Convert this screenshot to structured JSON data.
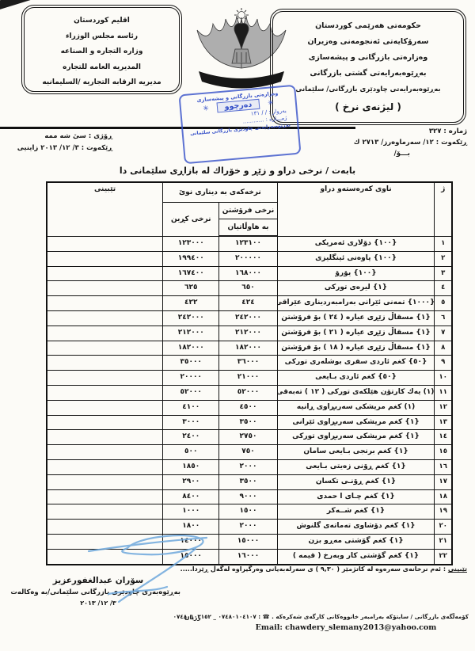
{
  "header": {
    "left_box": {
      "lines": [
        "اقليم كوردستان",
        "رئاسه مجلس الوزراء",
        "وزاره التجاره و الصناعه",
        "المديريه العامه للتجاره",
        "مديريه الرقابه التجاريه /السليمانيه"
      ]
    },
    "right_box": {
      "lines": [
        "حكومه‌تی هه‌رێمی كوردستان",
        "سه‌رۆكایه‌تی ئه‌نجومه‌نی وه‌زیران",
        "وه‌زاره‌تی بازرگانی و پیشه‌سازی",
        "به‌ڕێوه‌به‌رایه‌تی گشتی بازرگانی",
        "به‌ڕێوه‌به‌رایه‌تی چاودێری بازرگانی/ سلێمانی",
        "( لیژنه‌ی نرخ )"
      ]
    },
    "stamp": {
      "color": "#3550c8",
      "line1": "وه‌زاره‌تی بازرگانی و پیشه‌سازی",
      "asterisk": "✳",
      "center": "ده‌رچوو",
      "line2": "به‌روار :      /      / ١٣١",
      "line3": "ژمـــاره‌ : ............",
      "line4": "به‌ڕێوه‌به‌رایه‌تی چاودێری بازرگانی سلێمانی"
    }
  },
  "meta_left": {
    "day": "ڕۆژی : سیٚ شه‌ ممه‌",
    "date": "ڕێكه‌وت : ٣/ ١٢/ ٢٠١٣ زاینیی"
  },
  "meta_right": {
    "number": "ژماره‌ : ٣٢٧",
    "date": "ڕێكه‌وت : ١٢/ سه‌رماوه‌رز/ ٢٧١٣ ك",
    "to": "بـــۆ/"
  },
  "subject": "بابه‌ت / نرخی دراو و زێڕ و خۆراك له‌ بازاڕی سلێمانی دا",
  "table": {
    "col_no": "ژ",
    "col_name": "ناوی كه‌ره‌سته‌و دراو",
    "col_group": "نرخه‌كه‌ی به‌ دیناری نوێ",
    "col_sell_line1": "نرخی فرۆشتن",
    "col_sell_line2": "به‌ هاوڵاتیان",
    "col_buy": "نرخی كڕین",
    "col_notes": "تێبینی",
    "rows": [
      {
        "no": "١",
        "name": "{١٠٠} دۆلاری ئه‌مریكی",
        "sell": "١٢٣١٠٠",
        "buy": "١٢٣٠٠٠",
        "note": ""
      },
      {
        "no": "٢",
        "name": "{١٠٠} پاوه‌نی ئینگلیزی",
        "sell": "٢٠٠٠٠٠",
        "buy": "١٩٩٤٠٠",
        "note": ""
      },
      {
        "no": "٣",
        "name": "{١٠٠} یۆرۆ",
        "sell": "١٦٨٠٠٠",
        "buy": "١٦٧٤٠٠",
        "note": ""
      },
      {
        "no": "٤",
        "name": "{١} لیره‌ی توركی",
        "sell": "٦٥٠",
        "buy": "٦٢٥",
        "note": ""
      },
      {
        "no": "٥",
        "name": "{١٠٠٠} تمه‌نی ئێرانی به‌رامبه‌ردیناری عێراقی",
        "sell": "٤٢٤",
        "buy": "٤٢٢",
        "note": ""
      },
      {
        "no": "٦",
        "name": "{١} مسقاڵ زێڕی عیاره‌ ( ٢٤ ) بۆ فرۆشتن",
        "sell": "٢٤٢٠٠٠",
        "buy": "٢٤٢٠٠٠",
        "note": ""
      },
      {
        "no": "٧",
        "name": "{١} مسقاڵ زێڕی عیاره‌ ( ٢١ ) بۆ فرۆشتن",
        "sell": "٢١٢٠٠٠",
        "buy": "٢١٢٠٠٠",
        "note": ""
      },
      {
        "no": "٨",
        "name": "{١} مسقاڵ زێڕی عیاره‌ ( ١٨ ) بۆ فرۆشتن",
        "sell": "١٨٢٠٠٠",
        "buy": "١٨٢٠٠٠",
        "note": ""
      },
      {
        "no": "٩",
        "name": "{٥٠} كغم ئاردی سفری بوشله‌ری توركی",
        "sell": "٣٦٠٠٠",
        "buy": "٣٥٠٠٠",
        "note": ""
      },
      {
        "no": "١٠",
        "name": "{٥٠} كغم ئاردی بـایعی",
        "sell": "٢١٠٠٠",
        "buy": "٢٠٠٠٠",
        "note": ""
      },
      {
        "no": "١١",
        "name": "(١) یه‌ك كارتۆن هێلكه‌ی توركی ( ١٢ ) ته‌به‌قی",
        "sell": "٥٢٠٠٠",
        "buy": "٥٢٠٠٠",
        "note": ""
      },
      {
        "no": "١٢",
        "name": "(١) كغم مریشكی سه‌ربڕاوی ڕانیه‌",
        "sell": "٤٥٠٠",
        "buy": "٤١٠٠",
        "note": ""
      },
      {
        "no": "١٣",
        "name": "{١} كغم مریشكی سه‌ربڕاوی ئێرانی",
        "sell": "٣٥٠٠",
        "buy": "٣٠٠٠",
        "note": ""
      },
      {
        "no": "١٤",
        "name": "{١} كغم مریشكی سه‌ربڕاوی توركی",
        "sell": "٢٧٥٠",
        "buy": "٢٤٠٠",
        "note": ""
      },
      {
        "no": "١٥",
        "name": "{١} كغم برنجی بـایعی سامان",
        "sell": "٧٥٠",
        "buy": "٥٠٠",
        "note": ""
      },
      {
        "no": "١٦",
        "name": "{١} كغم ڕۆنی زه‌یتی بـایعی",
        "sell": "٢٠٠٠",
        "buy": "١٨٥٠",
        "note": ""
      },
      {
        "no": "١٧",
        "name": "{١} كغم ڕۆنـی تكسان",
        "sell": "٣٥٠٠",
        "buy": "٢٩٠٠",
        "note": ""
      },
      {
        "no": "١٨",
        "name": "{١} كغم چـای ا حمدی",
        "sell": "٩٠٠٠",
        "buy": "٨٤٠٠",
        "note": ""
      },
      {
        "no": "١٩",
        "name": "{١} كغم شــه‌كر",
        "sell": "١٥٠٠",
        "buy": "١٠٠٠",
        "note": ""
      },
      {
        "no": "٢٠",
        "name": "{١} كغم دۆشاوی ته‌ماته‌ی گلنوش",
        "sell": "٢٠٠٠",
        "buy": "١٨٠٠",
        "note": ""
      },
      {
        "no": "٢١",
        "name": "{١} كغم گۆشتی مه‌ڕو بزن",
        "sell": "١٥٠٠٠",
        "buy": "١٤٠٠٠",
        "note": ""
      },
      {
        "no": "٢٢",
        "name": "{١} كغم گۆشتی كار وبه‌رخ ( قیمه‌ )",
        "sell": "١٦٠٠٠",
        "buy": "١٥٠٠٠",
        "note": ""
      }
    ]
  },
  "note": {
    "label": "تێبینی",
    "text": " : ئه‌م نرخانه‌ی سه‌ره‌وه‌ له‌ كاتژمێر ( ٩,٣٠ ) ی سه‌رله‌به‌یانی وه‌رگیراوه‌ له‌گه‌ڵ ڕێزدا....."
  },
  "signature": {
    "name": "سۆران عبدالغفورعزیز",
    "title": "به‌ڕێوه‌به‌ری چاودێری بازرگانی سلێمانی/به‌ وه‌كاله‌ت",
    "date": "٣/ ١٢/ ٢٠١٣"
  },
  "footer": {
    "brand": "زریان",
    "address": "كۆمه‌ڵگه‌ی بازرگانی / سایتۆكه‌ به‌رامبه‌ر خانووه‌كانی كارگه‌ی شه‌كره‌كه‌ .",
    "phone_icon": "☎",
    "phone_sep": ":",
    "phones": "٠٧٤٨٠١٠٤١٠٧ _ ٠٧٤٨٠١٠٣١٥٢",
    "email_label": "Email:",
    "email": "chawdery_slemany2013@yahoo.com"
  }
}
